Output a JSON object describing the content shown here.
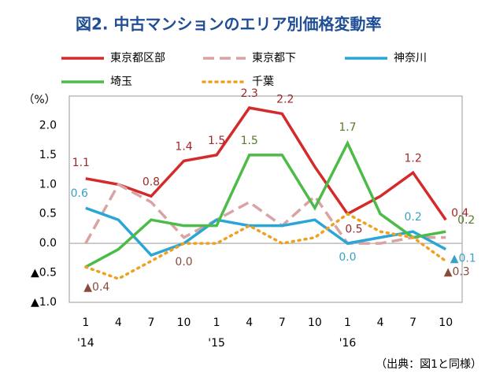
{
  "chart_data": {
    "type": "line",
    "title": "図2. 中古マンションのエリア別価格変動率",
    "y_unit_label": "（%）",
    "source": "（出典：図1と同様）",
    "categories": [
      "1",
      "4",
      "7",
      "10",
      "1",
      "4",
      "7",
      "10",
      "1",
      "4",
      "7",
      "10"
    ],
    "x_group_labels": [
      "'14",
      null,
      null,
      null,
      "'15",
      null,
      null,
      null,
      "'16",
      null,
      null,
      null
    ],
    "ylim": [
      -1,
      2.5
    ],
    "yticks": [
      {
        "value": 2,
        "label": "2.0"
      },
      {
        "value": 1.5,
        "label": "1.5"
      },
      {
        "value": 1,
        "label": "1.0"
      },
      {
        "value": 0.5,
        "label": "0.5"
      },
      {
        "value": 0,
        "label": "0.0"
      },
      {
        "value": -0.5,
        "label": "▲0.5"
      },
      {
        "value": -1,
        "label": "▲1.0"
      }
    ],
    "grid": false,
    "series": [
      {
        "name": "東京都区部",
        "color": "#d42a2a",
        "dash": "solid",
        "label_color": "#a0282a",
        "values": [
          1.1,
          1.0,
          0.8,
          1.4,
          1.5,
          2.3,
          2.2,
          1.3,
          0.5,
          0.8,
          1.2,
          0.4
        ],
        "value_labels": [
          "1.1",
          null,
          "0.8",
          "1.4",
          "1.5",
          "2.3",
          "2.2",
          null,
          "0.5",
          null,
          "1.2",
          "0.4"
        ]
      },
      {
        "name": "東京都下",
        "color": "#d9a3a3",
        "dash": "dashed",
        "label_color": "#a0282a",
        "values": [
          0.0,
          1.0,
          0.7,
          0.1,
          0.4,
          0.7,
          0.3,
          0.8,
          0.0,
          0.0,
          0.1,
          0.1
        ]
      },
      {
        "name": "神奈川",
        "color": "#2aa6d6",
        "dash": "solid",
        "label_color": "#3aa0c8",
        "values": [
          0.6,
          0.4,
          -0.2,
          0.0,
          0.4,
          0.3,
          0.3,
          0.4,
          0.0,
          0.1,
          0.2,
          -0.1
        ],
        "value_labels": [
          "0.6",
          null,
          null,
          null,
          null,
          null,
          null,
          null,
          "0.0",
          null,
          "0.2",
          "▲0.1"
        ]
      },
      {
        "name": "埼玉",
        "color": "#4cbb48",
        "dash": "solid",
        "label_color": "#5a7a2a",
        "values": [
          -0.4,
          -0.1,
          0.4,
          0.3,
          0.3,
          1.5,
          1.5,
          0.6,
          1.7,
          0.5,
          0.1,
          0.2
        ],
        "value_labels": [
          null,
          null,
          null,
          null,
          null,
          "1.5",
          null,
          null,
          "1.7",
          null,
          null,
          "0.2"
        ]
      },
      {
        "name": "千葉",
        "color": "#f0a020",
        "dash": "dotted",
        "label_color": "#8b4a3a",
        "values": [
          -0.4,
          -0.6,
          -0.3,
          0.0,
          0.0,
          0.3,
          0.0,
          0.1,
          0.5,
          0.2,
          0.1,
          -0.3
        ],
        "value_labels": [
          "▲0.4",
          null,
          null,
          "0.0",
          null,
          null,
          null,
          null,
          null,
          null,
          null,
          "▲0.3"
        ]
      }
    ]
  }
}
